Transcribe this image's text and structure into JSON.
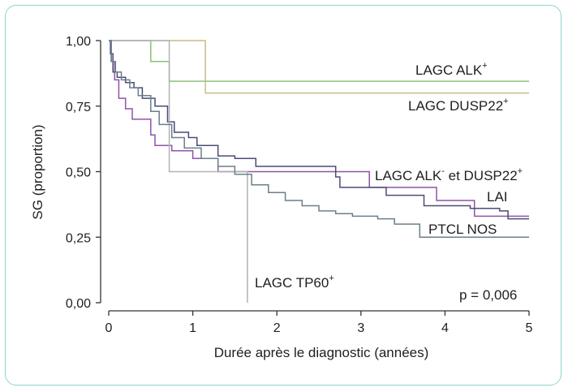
{
  "chart_data": {
    "type": "line",
    "step": true,
    "xlabel": "Durée après le diagnostic (années)",
    "ylabel": "SG (proportion)",
    "xlim": [
      0,
      5
    ],
    "ylim": [
      0,
      1
    ],
    "x_ticks": [
      "0",
      "1",
      "2",
      "3",
      "4",
      "5"
    ],
    "y_ticks": [
      "0,00",
      "0,25",
      "0,50",
      "0,75",
      "1,00"
    ],
    "grid": false,
    "annotation": "p = 0,006",
    "series": [
      {
        "label": "LAGC ALK",
        "sup": "+",
        "color": "#8cc07a",
        "x": [
          0,
          0.5,
          0.5,
          0.72,
          0.72,
          5
        ],
        "y": [
          1,
          1,
          0.92,
          0.92,
          0.845,
          0.845
        ]
      },
      {
        "label": "LAGC DUSP22",
        "sup": "+",
        "color": "#c9bb86",
        "x": [
          0,
          1.15,
          1.15,
          5
        ],
        "y": [
          1,
          1,
          0.8,
          0.8
        ]
      },
      {
        "label": "LAGC ALK",
        "sup": "-",
        "suffix": " et DUSP22",
        "suffix_sup": "+",
        "color": "#8e55a6",
        "x": [
          0,
          0.03,
          0.03,
          0.07,
          0.07,
          0.12,
          0.12,
          0.2,
          0.2,
          0.28,
          0.28,
          0.5,
          0.5,
          0.55,
          0.55,
          0.75,
          0.75,
          1.0,
          1.0,
          1.3,
          1.3,
          3.1,
          3.1,
          3.9,
          3.9,
          4.35,
          4.35,
          5
        ],
        "y": [
          1,
          1,
          0.92,
          0.92,
          0.85,
          0.85,
          0.78,
          0.78,
          0.74,
          0.74,
          0.7,
          0.7,
          0.64,
          0.64,
          0.6,
          0.6,
          0.58,
          0.58,
          0.55,
          0.55,
          0.5,
          0.5,
          0.44,
          0.44,
          0.39,
          0.39,
          0.33,
          0.33
        ]
      },
      {
        "label": "LAI",
        "color": "#4b4c78",
        "x": [
          0,
          0.02,
          0.02,
          0.05,
          0.05,
          0.1,
          0.1,
          0.2,
          0.2,
          0.3,
          0.3,
          0.4,
          0.4,
          0.55,
          0.55,
          0.7,
          0.7,
          0.78,
          0.78,
          0.95,
          0.95,
          1.05,
          1.05,
          1.3,
          1.3,
          1.5,
          1.5,
          1.75,
          1.75,
          2.7,
          2.7,
          2.75,
          2.75,
          3.3,
          3.3,
          3.75,
          3.75,
          4.3,
          4.3,
          4.65,
          4.65,
          4.75,
          4.75,
          5
        ],
        "y": [
          1,
          1,
          0.95,
          0.95,
          0.88,
          0.88,
          0.86,
          0.86,
          0.84,
          0.84,
          0.82,
          0.82,
          0.78,
          0.78,
          0.75,
          0.75,
          0.69,
          0.69,
          0.65,
          0.65,
          0.63,
          0.63,
          0.6,
          0.6,
          0.56,
          0.56,
          0.55,
          0.55,
          0.52,
          0.52,
          0.48,
          0.48,
          0.44,
          0.44,
          0.41,
          0.41,
          0.37,
          0.37,
          0.36,
          0.36,
          0.35,
          0.35,
          0.32,
          0.32
        ]
      },
      {
        "label": "LAGC TP60",
        "sup": "+",
        "color": "#b2b2b2",
        "x": [
          0,
          0.72,
          0.72,
          1.65,
          1.65
        ],
        "y": [
          1,
          1,
          0.5,
          0.5,
          0.0
        ]
      },
      {
        "label": "PTCL  NOS",
        "color": "#6b7f88",
        "x": [
          0,
          0.03,
          0.03,
          0.08,
          0.08,
          0.15,
          0.15,
          0.25,
          0.25,
          0.35,
          0.35,
          0.5,
          0.5,
          0.6,
          0.6,
          0.75,
          0.75,
          0.9,
          0.9,
          1.1,
          1.1,
          1.3,
          1.3,
          1.5,
          1.5,
          1.7,
          1.7,
          1.9,
          1.9,
          2.1,
          2.1,
          2.3,
          2.3,
          2.5,
          2.5,
          2.7,
          2.7,
          2.9,
          2.9,
          3.2,
          3.2,
          3.4,
          3.4,
          3.7,
          3.7,
          5
        ],
        "y": [
          1,
          1,
          0.92,
          0.92,
          0.88,
          0.88,
          0.85,
          0.85,
          0.82,
          0.82,
          0.79,
          0.79,
          0.73,
          0.73,
          0.68,
          0.68,
          0.63,
          0.63,
          0.59,
          0.59,
          0.55,
          0.55,
          0.52,
          0.52,
          0.49,
          0.49,
          0.45,
          0.45,
          0.42,
          0.42,
          0.39,
          0.39,
          0.37,
          0.37,
          0.35,
          0.35,
          0.34,
          0.34,
          0.33,
          0.33,
          0.32,
          0.32,
          0.3,
          0.3,
          0.25,
          0.25
        ]
      }
    ]
  }
}
